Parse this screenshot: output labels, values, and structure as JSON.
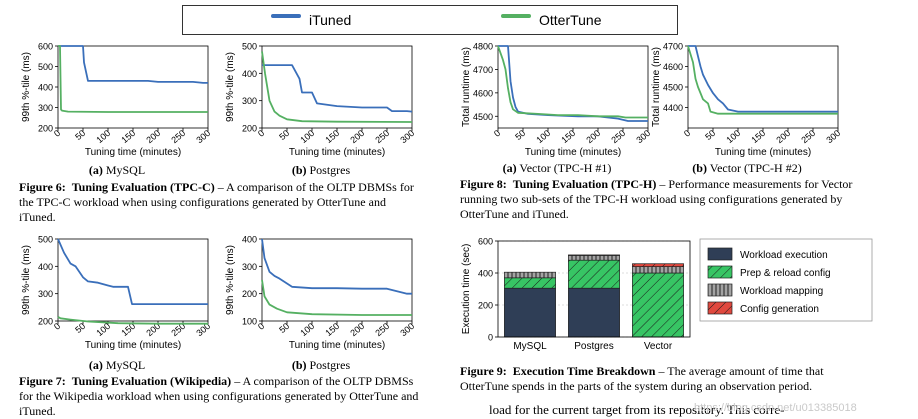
{
  "legend": {
    "itune_label": "iTuned",
    "otter_label": "OtterTune",
    "itune_color": "#3a6fba",
    "otter_color": "#55b062"
  },
  "charts": {
    "tpcc_mysql": {
      "ylabel": "99th %-tile (ms)",
      "xlabel": "Tuning time (minutes)",
      "subcaption_letter": "(a)",
      "subcaption_text": " MySQL"
    },
    "tpcc_postgres": {
      "ylabel": "99th %-tile (ms)",
      "xlabel": "Tuning time (minutes)",
      "subcaption_letter": "(b)",
      "subcaption_text": " Postgres"
    },
    "wiki_mysql": {
      "ylabel": "99th %-tile (ms)",
      "xlabel": "Tuning time (minutes)",
      "subcaption_letter": "(a)",
      "subcaption_text": " MySQL"
    },
    "wiki_postgres": {
      "ylabel": "99th %-tile (ms)",
      "xlabel": "Tuning time (minutes)",
      "subcaption_letter": "(b)",
      "subcaption_text": " Postgres"
    },
    "tpch1": {
      "ylabel": "Total runtime (ms)",
      "xlabel": "Tuning time (minutes)",
      "subcaption_letter": "(a)",
      "subcaption_text": " Vector (TPC-H #1)"
    },
    "tpch2": {
      "ylabel": "Total runtime (ms)",
      "xlabel": "Tuning time (minutes)",
      "subcaption_letter": "(b)",
      "subcaption_text": " Vector (TPC-H #2)"
    },
    "breakdown": {
      "ylabel": "Execution time (sec)"
    }
  },
  "chart_data": [
    {
      "id": "tpcc_mysql",
      "type": "line",
      "title": "",
      "xlabel": "Tuning time (minutes)",
      "ylabel": "99th %-tile (ms)",
      "xlim": [
        0,
        300
      ],
      "ylim": [
        200,
        600
      ],
      "xticks": [
        0,
        50,
        100,
        150,
        200,
        250,
        300
      ],
      "yticks": [
        200,
        300,
        400,
        500,
        600
      ],
      "series": [
        {
          "name": "iTuned",
          "x": [
            0,
            50,
            52,
            60,
            180,
            200,
            270,
            290,
            300
          ],
          "y": [
            600,
            600,
            520,
            430,
            430,
            425,
            425,
            420,
            420
          ]
        },
        {
          "name": "OtterTune",
          "x": [
            0,
            4,
            6,
            8,
            20,
            100,
            300
          ],
          "y": [
            600,
            600,
            290,
            285,
            280,
            278,
            278
          ]
        }
      ]
    },
    {
      "id": "tpcc_postgres",
      "type": "line",
      "title": "",
      "xlabel": "Tuning time (minutes)",
      "ylabel": "99th %-tile (ms)",
      "xlim": [
        0,
        300
      ],
      "ylim": [
        200,
        500
      ],
      "xticks": [
        0,
        50,
        100,
        150,
        200,
        250,
        300
      ],
      "yticks": [
        200,
        300,
        400,
        500
      ],
      "series": [
        {
          "name": "iTuned",
          "x": [
            0,
            60,
            75,
            80,
            100,
            110,
            150,
            200,
            250,
            260,
            290,
            300
          ],
          "y": [
            430,
            430,
            380,
            330,
            330,
            290,
            280,
            275,
            275,
            262,
            262,
            260
          ]
        },
        {
          "name": "OtterTune",
          "x": [
            0,
            6,
            15,
            25,
            35,
            50,
            80,
            150,
            300
          ],
          "y": [
            480,
            400,
            300,
            260,
            245,
            232,
            225,
            223,
            222
          ]
        }
      ]
    },
    {
      "id": "wiki_mysql",
      "type": "line",
      "title": "",
      "xlabel": "Tuning time (minutes)",
      "ylabel": "99th %-tile (ms)",
      "xlim": [
        0,
        300
      ],
      "ylim": [
        200,
        500
      ],
      "xticks": [
        0,
        50,
        100,
        150,
        200,
        250,
        300
      ],
      "yticks": [
        200,
        300,
        400,
        500
      ],
      "series": [
        {
          "name": "iTuned",
          "x": [
            0,
            12,
            25,
            35,
            50,
            60,
            80,
            100,
            110,
            140,
            148,
            300
          ],
          "y": [
            500,
            450,
            410,
            400,
            360,
            345,
            340,
            330,
            325,
            325,
            262,
            262
          ]
        },
        {
          "name": "OtterTune",
          "x": [
            0,
            5,
            25,
            60,
            120,
            200,
            300
          ],
          "y": [
            215,
            210,
            205,
            198,
            192,
            190,
            190
          ]
        }
      ]
    },
    {
      "id": "wiki_postgres",
      "type": "line",
      "title": "",
      "xlabel": "Tuning time (minutes)",
      "ylabel": "99th %-tile (ms)",
      "xlim": [
        0,
        300
      ],
      "ylim": [
        100,
        400
      ],
      "xticks": [
        0,
        50,
        100,
        150,
        200,
        250,
        300
      ],
      "yticks": [
        100,
        200,
        300,
        400
      ],
      "series": [
        {
          "name": "iTuned",
          "x": [
            0,
            5,
            15,
            25,
            35,
            60,
            100,
            150,
            200,
            250,
            290,
            300
          ],
          "y": [
            400,
            330,
            280,
            265,
            255,
            225,
            220,
            220,
            218,
            218,
            200,
            200
          ]
        },
        {
          "name": "OtterTune",
          "x": [
            0,
            5,
            15,
            30,
            50,
            100,
            200,
            300
          ],
          "y": [
            250,
            190,
            160,
            145,
            132,
            125,
            122,
            122
          ]
        }
      ]
    },
    {
      "id": "tpch1",
      "type": "line",
      "title": "",
      "xlabel": "Tuning time (minutes)",
      "ylabel": "Total runtime (ms)",
      "xlim": [
        0,
        300
      ],
      "ylim": [
        4450,
        4800
      ],
      "xticks": [
        0,
        50,
        100,
        150,
        200,
        250,
        300
      ],
      "yticks": [
        4500,
        4600,
        4700,
        4800
      ],
      "series": [
        {
          "name": "iTuned",
          "x": [
            0,
            20,
            25,
            30,
            35,
            40,
            60,
            100,
            160,
            200,
            240,
            260,
            300
          ],
          "y": [
            4800,
            4800,
            4650,
            4580,
            4540,
            4520,
            4510,
            4505,
            4500,
            4500,
            4490,
            4480,
            4480
          ]
        },
        {
          "name": "OtterTune",
          "x": [
            0,
            10,
            15,
            20,
            25,
            30,
            40,
            80,
            120,
            160,
            200,
            240,
            255,
            300
          ],
          "y": [
            4800,
            4740,
            4700,
            4620,
            4560,
            4530,
            4515,
            4510,
            4505,
            4505,
            4500,
            4500,
            4495,
            4495
          ]
        }
      ]
    },
    {
      "id": "tpch2",
      "type": "line",
      "title": "",
      "xlabel": "Tuning time (minutes)",
      "ylabel": "Total runtime (ms)",
      "xlim": [
        0,
        300
      ],
      "ylim": [
        4300,
        4700
      ],
      "xticks": [
        0,
        50,
        100,
        150,
        200,
        250,
        300
      ],
      "yticks": [
        4400,
        4500,
        4600,
        4700
      ],
      "series": [
        {
          "name": "iTuned",
          "x": [
            0,
            15,
            20,
            25,
            30,
            40,
            50,
            60,
            70,
            80,
            100,
            200,
            300
          ],
          "y": [
            4700,
            4700,
            4650,
            4600,
            4560,
            4510,
            4470,
            4440,
            4420,
            4390,
            4380,
            4380,
            4380
          ]
        },
        {
          "name": "OtterTune",
          "x": [
            0,
            10,
            15,
            20,
            25,
            30,
            40,
            45,
            60,
            100,
            200,
            300
          ],
          "y": [
            4700,
            4620,
            4540,
            4500,
            4470,
            4440,
            4420,
            4380,
            4370,
            4370,
            4370,
            4370
          ]
        }
      ]
    },
    {
      "id": "breakdown",
      "type": "bar",
      "stacked": true,
      "title": "",
      "xlabel": "",
      "ylabel": "Execution time (sec)",
      "ylim": [
        0,
        600
      ],
      "yticks": [
        0,
        200,
        400,
        600
      ],
      "categories": [
        "MySQL",
        "Postgres",
        "Vector"
      ],
      "series": [
        {
          "name": "Workload execution",
          "color": "#2f3e56",
          "hatch": "none",
          "values": [
            305,
            305,
            0
          ]
        },
        {
          "name": "Prep & reload config",
          "color": "#37c564",
          "hatch": "diag",
          "values": [
            65,
            175,
            400
          ]
        },
        {
          "name": "Workload mapping",
          "color": "#a4a4a4",
          "hatch": "vert",
          "values": [
            35,
            30,
            40
          ]
        },
        {
          "name": "Config generation",
          "color": "#e0483e",
          "hatch": "diag",
          "values": [
            0,
            3,
            18
          ]
        }
      ]
    }
  ],
  "captions": {
    "fig6": {
      "label": "Figure 6:",
      "title": "Tuning Evaluation (TPC-C)",
      "body": " – A comparison of the OLTP DBMSs for the TPC-C workload when using configurations generated by OtterTune and iTuned."
    },
    "fig7": {
      "label": "Figure 7:",
      "title": "Tuning Evaluation (Wikipedia)",
      "body": " – A comparison of the OLTP DBMSs for the Wikipedia workload when using configurations generated by OtterTune and iTuned."
    },
    "fig8": {
      "label": "Figure 8:",
      "title": "Tuning Evaluation (TPC-H)",
      "body": " – Performance measurements for Vector running two sub-sets of the TPC-H workload using configurations generated by OtterTune and iTuned."
    },
    "fig9": {
      "label": "Figure 9:",
      "title": "Execution Time Breakdown",
      "body": " – The average amount of time that OtterTune spends in the parts of the system during an observation period."
    }
  },
  "body_text": "load for the current target from its repository. This corre-",
  "watermark": "https://blog.csdn.net/u013385018"
}
